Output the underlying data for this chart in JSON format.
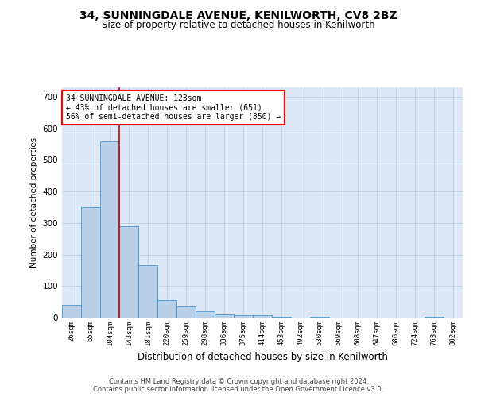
{
  "title1": "34, SUNNINGDALE AVENUE, KENILWORTH, CV8 2BZ",
  "title2": "Size of property relative to detached houses in Kenilworth",
  "xlabel": "Distribution of detached houses by size in Kenilworth",
  "ylabel": "Number of detached properties",
  "bar_color": "#b8d0e8",
  "bar_edge_color": "#5a9fd4",
  "background_color": "#dce8f5",
  "tick_labels": [
    "26sqm",
    "65sqm",
    "104sqm",
    "143sqm",
    "181sqm",
    "220sqm",
    "259sqm",
    "298sqm",
    "336sqm",
    "375sqm",
    "414sqm",
    "453sqm",
    "492sqm",
    "530sqm",
    "569sqm",
    "608sqm",
    "647sqm",
    "686sqm",
    "724sqm",
    "763sqm",
    "802sqm"
  ],
  "bar_values": [
    40,
    350,
    560,
    290,
    165,
    55,
    35,
    20,
    10,
    7,
    7,
    3,
    0,
    3,
    0,
    0,
    0,
    0,
    0,
    3,
    0
  ],
  "ylim": [
    0,
    730
  ],
  "yticks": [
    0,
    100,
    200,
    300,
    400,
    500,
    600,
    700
  ],
  "property_line_x": 2.5,
  "annotation_text": "34 SUNNINGDALE AVENUE: 123sqm\n← 43% of detached houses are smaller (651)\n56% of semi-detached houses are larger (850) →",
  "annotation_box_color": "white",
  "annotation_box_edge": "red",
  "footer1": "Contains HM Land Registry data © Crown copyright and database right 2024.",
  "footer2": "Contains public sector information licensed under the Open Government Licence v3.0.",
  "grid_color": "#c0d4e8",
  "red_line_color": "#cc0000",
  "title1_fontsize": 10,
  "title2_fontsize": 8.5
}
